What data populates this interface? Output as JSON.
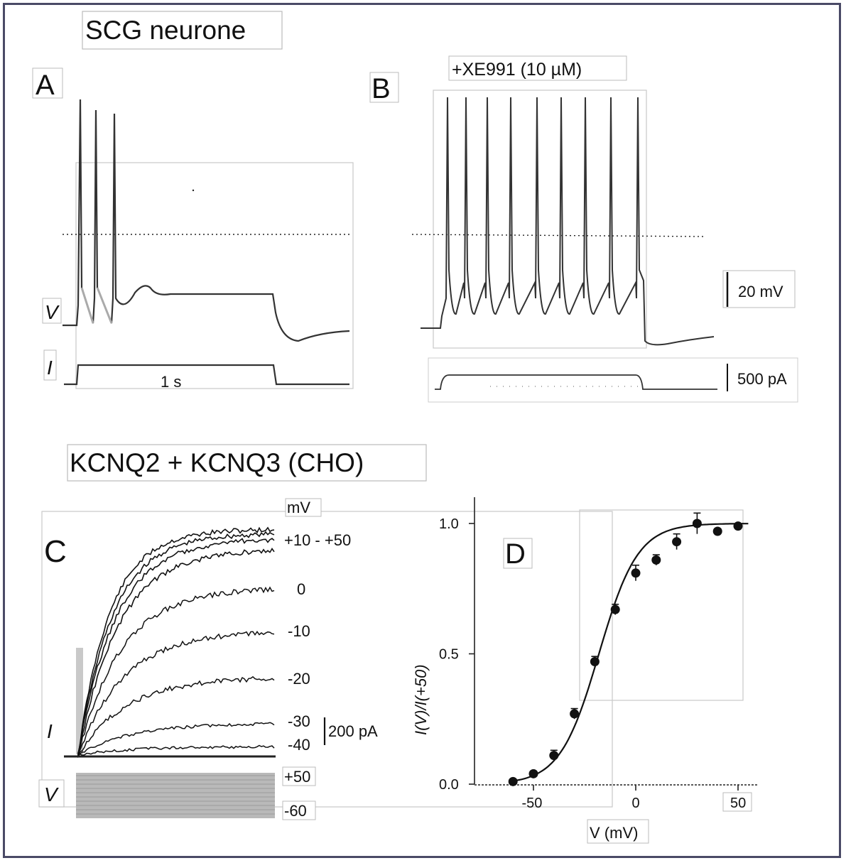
{
  "top_section_title": "SCG neurone",
  "bottom_section_title": "KCNQ2 + KCNQ3 (CHO)",
  "panel_a": {
    "letter": "A",
    "v_label": "V",
    "i_label": "I",
    "time_scale_label": "1 s"
  },
  "panel_b": {
    "letter": "B",
    "drug_label": "+XE991 (10 µM)",
    "voltage_scale_label": "20 mV",
    "current_scale_label": "500 pA"
  },
  "panel_c": {
    "letter": "C",
    "unit_label": "mV",
    "i_label": "I",
    "v_label": "V",
    "current_scale_label": "200 pA",
    "trace_labels": [
      "+10 - +50",
      "0",
      "-10",
      "-20",
      "-30",
      "-40"
    ],
    "protocol_top_label": "+50",
    "protocol_bottom_label": "-60"
  },
  "panel_d": {
    "letter": "D",
    "xlabel": "V (mV)",
    "ylabel": "I(V)/I(+50)"
  },
  "chart_data": {
    "type": "scatter",
    "title": "",
    "xlabel": "V (mV)",
    "ylabel": "I(V)/I(+50)",
    "xlim": [
      -75,
      60
    ],
    "ylim": [
      0,
      1.05
    ],
    "x_ticks": [
      -50,
      0,
      50
    ],
    "y_ticks": [
      0.0,
      0.5,
      1.0
    ],
    "x_tick_labels": [
      "-50",
      "0",
      "50"
    ],
    "y_tick_labels": [
      "0.0",
      "0.5",
      "1.0"
    ],
    "points": [
      {
        "x": -60,
        "y": 0.01,
        "err": 0.0
      },
      {
        "x": -50,
        "y": 0.04,
        "err": 0.01
      },
      {
        "x": -40,
        "y": 0.11,
        "err": 0.02
      },
      {
        "x": -30,
        "y": 0.27,
        "err": 0.02
      },
      {
        "x": -20,
        "y": 0.47,
        "err": 0.02
      },
      {
        "x": -10,
        "y": 0.67,
        "err": 0.02
      },
      {
        "x": 0,
        "y": 0.81,
        "err": 0.03
      },
      {
        "x": 10,
        "y": 0.86,
        "err": 0.02
      },
      {
        "x": 20,
        "y": 0.93,
        "err": 0.03
      },
      {
        "x": 30,
        "y": 1.0,
        "err": 0.04
      },
      {
        "x": 40,
        "y": 0.97,
        "err": 0.01
      },
      {
        "x": 50,
        "y": 0.99,
        "err": 0.0
      }
    ],
    "fit": {
      "type": "boltzmann",
      "v_half": -18,
      "slope": 9.5
    }
  }
}
